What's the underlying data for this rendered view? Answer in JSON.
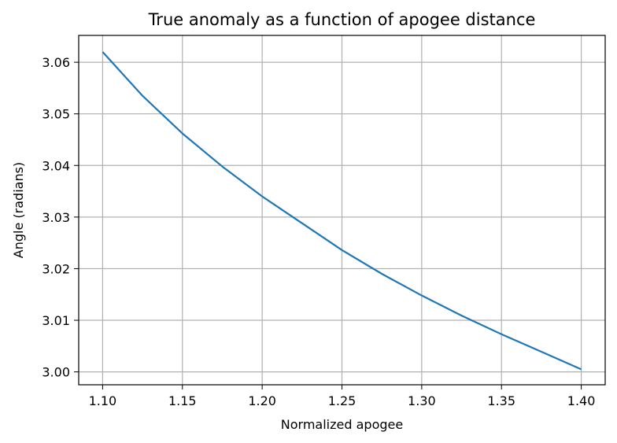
{
  "chart_data": {
    "type": "line",
    "title": "True anomaly as a function of apogee distance",
    "xlabel": "Normalized apogee",
    "ylabel": "Angle (radians)",
    "xlim": [
      1.085,
      1.415
    ],
    "ylim": [
      2.9975,
      3.0652
    ],
    "xticks": [
      1.1,
      1.15,
      1.2,
      1.25,
      1.3,
      1.35,
      1.4
    ],
    "xtick_labels": [
      "1.10",
      "1.15",
      "1.20",
      "1.25",
      "1.30",
      "1.35",
      "1.40"
    ],
    "yticks": [
      3.0,
      3.01,
      3.02,
      3.03,
      3.04,
      3.05,
      3.06
    ],
    "ytick_labels": [
      "3.00",
      "3.01",
      "3.02",
      "3.03",
      "3.04",
      "3.05",
      "3.06"
    ],
    "grid": true,
    "series": [
      {
        "color": "#1f77b4",
        "x": [
          1.1,
          1.125,
          1.15,
          1.175,
          1.2,
          1.225,
          1.25,
          1.275,
          1.3,
          1.325,
          1.35,
          1.375,
          1.4
        ],
        "y": [
          3.062,
          3.0535,
          3.0462,
          3.0398,
          3.034,
          3.0288,
          3.0236,
          3.019,
          3.0148,
          3.0109,
          3.0073,
          3.0039,
          3.0005
        ]
      }
    ]
  }
}
